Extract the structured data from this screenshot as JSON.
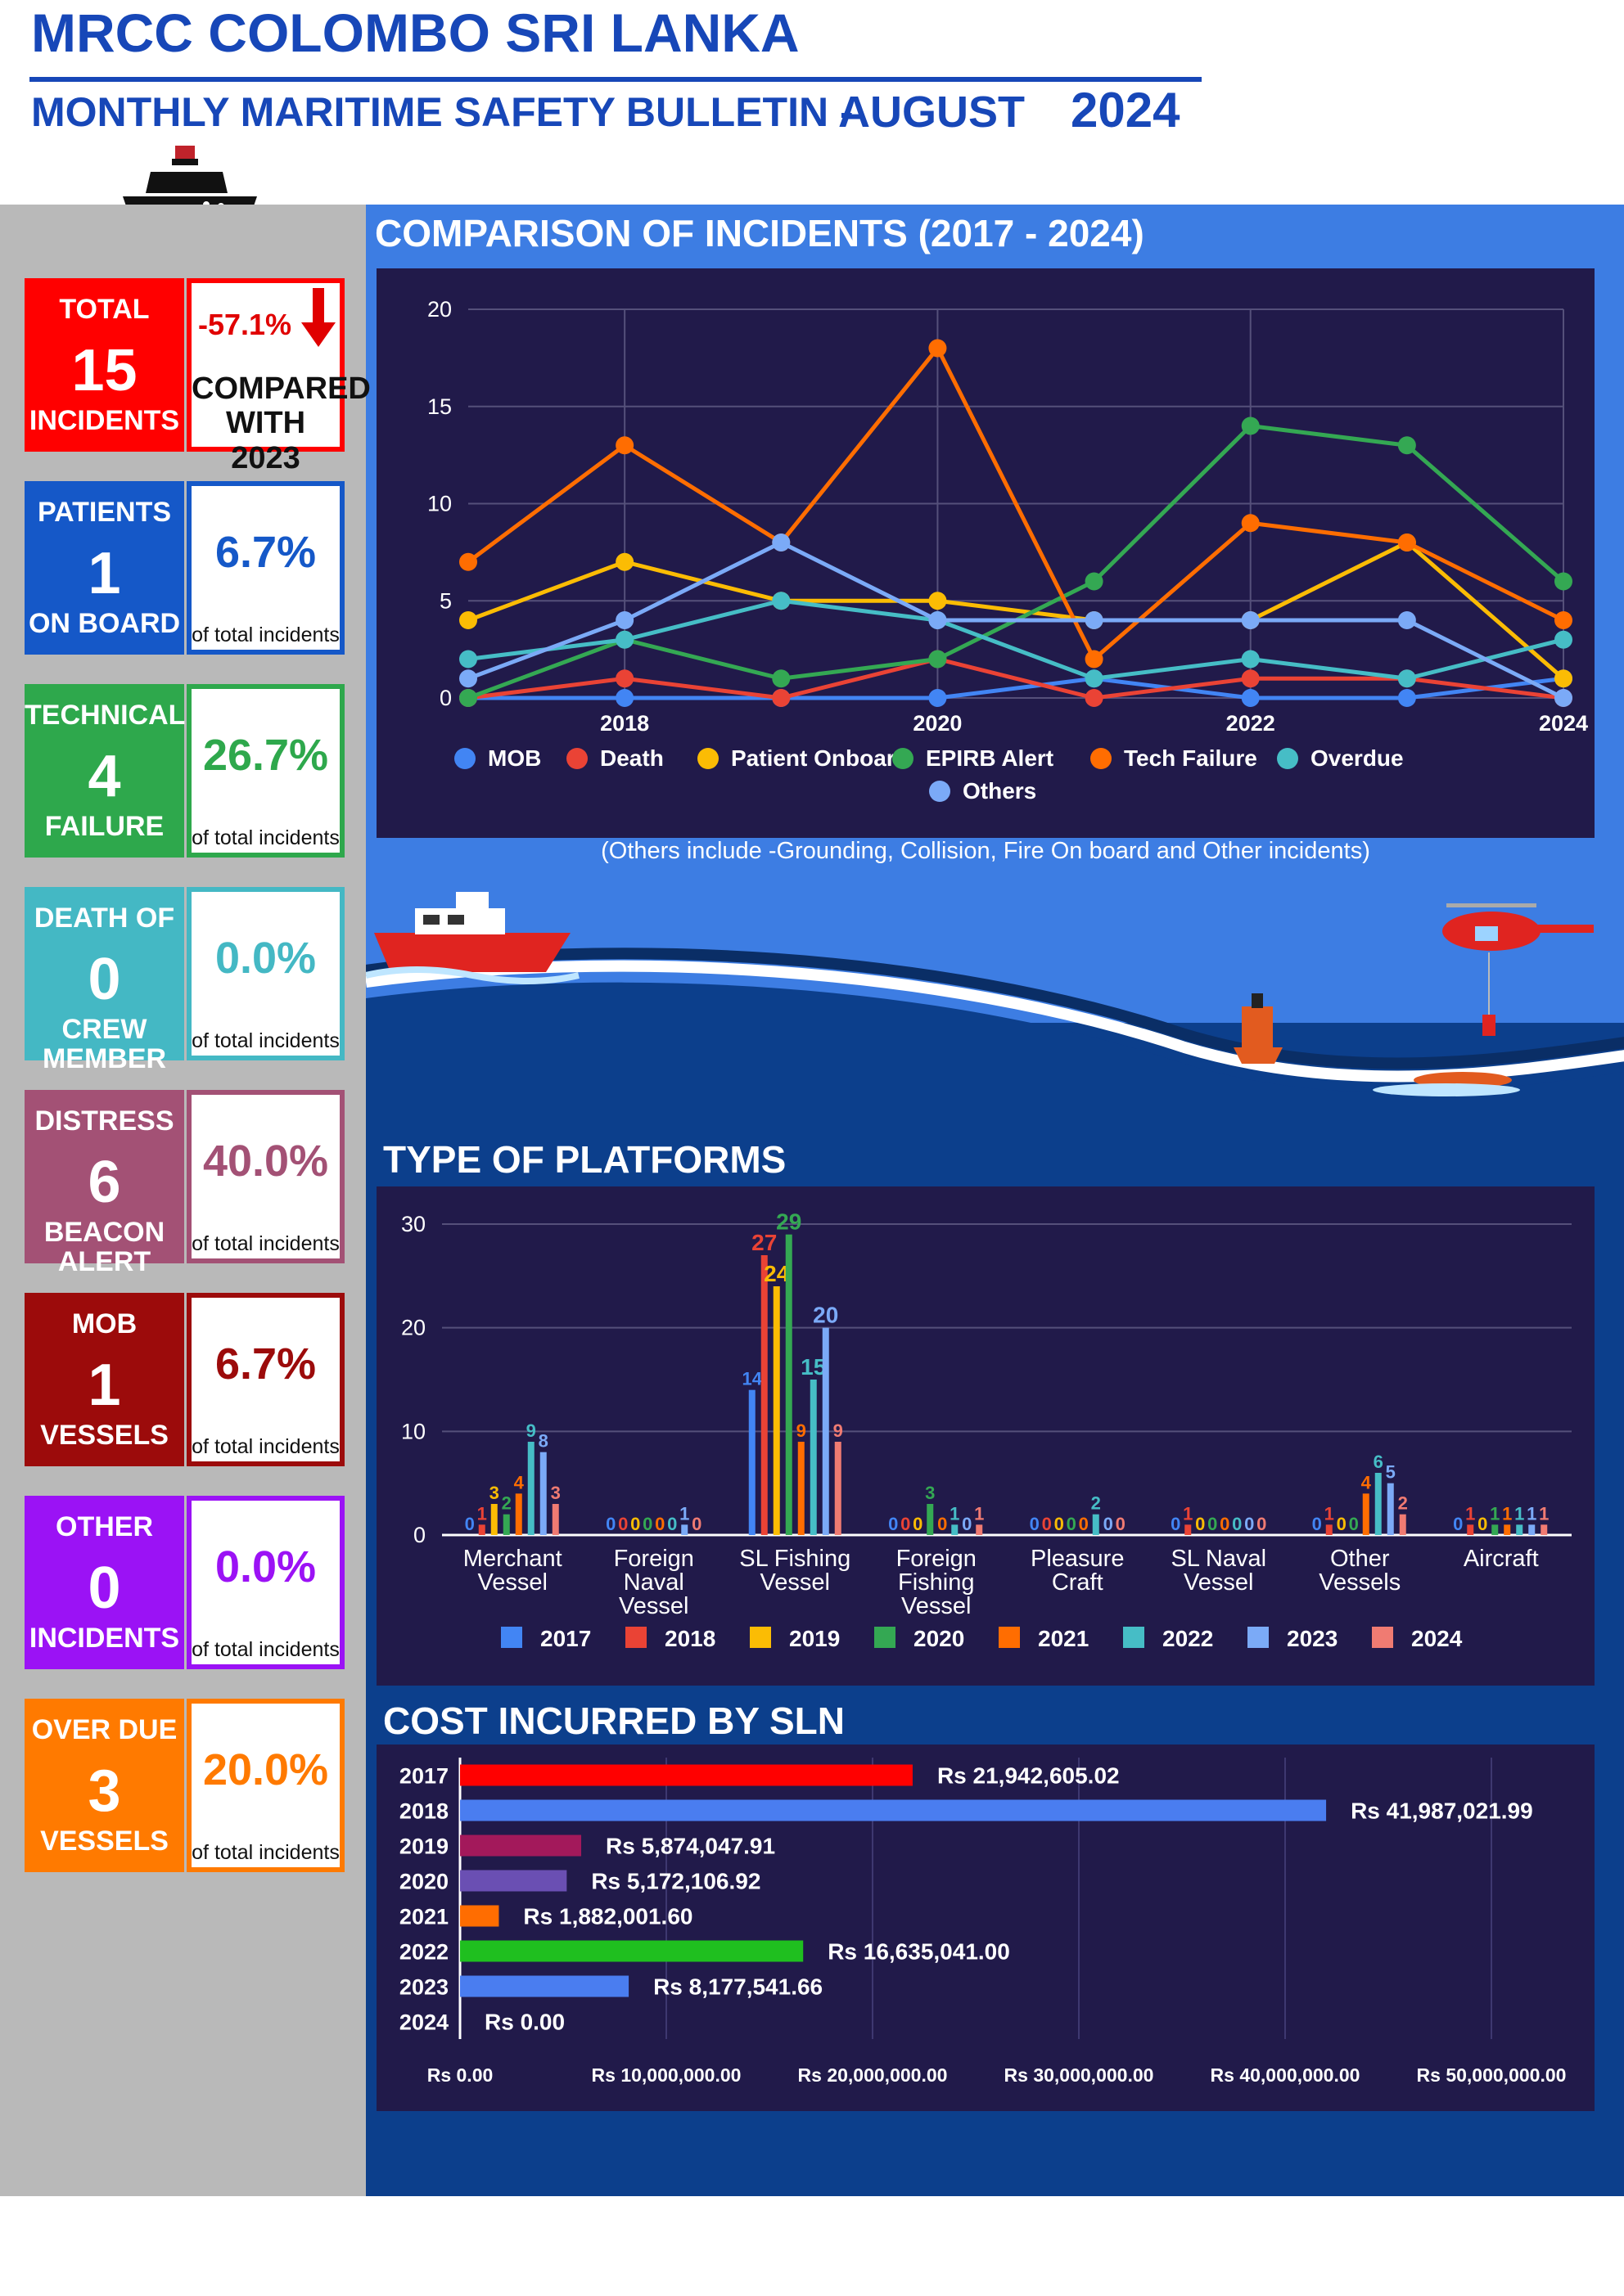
{
  "header": {
    "title": "MRCC COLOMBO SRI LANKA",
    "subtitle": "MONTHLY MARITIME SAFETY BULLETIN -",
    "month": "AUGUST",
    "year": "2024"
  },
  "colors": {
    "header_blue": "#1747b8",
    "sidebar_gray": "#b9b9b9",
    "dark_blue": "#0c3f8c",
    "light_blue": "#3d7de3",
    "chart_bg": "#211a4a"
  },
  "cards": [
    {
      "label_top": "TOTAL",
      "value": "15",
      "label_bottom": "INCIDENTS",
      "color": "#ff0000",
      "pct": "-57.1%",
      "pct_sub1": "COMPARED",
      "pct_sub2": "WITH 2023",
      "change": -57.1
    },
    {
      "label_top": "PATIENTS",
      "value": "1",
      "label_bottom": "ON BOARD",
      "color": "#1558c8",
      "pct": "6.7%",
      "pct_sub": "of total incidents"
    },
    {
      "label_top": "TECHNICAL",
      "value": "4",
      "label_bottom": "FAILURE",
      "color": "#2ea84c",
      "pct": "26.7%",
      "pct_sub": "of total incidents"
    },
    {
      "label_top": "DEATH OF",
      "value": "0",
      "label_bottom": "CREW MEMBER",
      "color": "#44b8c4",
      "pct": "0.0%",
      "pct_sub": "of total incidents"
    },
    {
      "label_top": "DISTRESS",
      "value": "6",
      "label_bottom": "BEACON ALERT",
      "color": "#a35175",
      "pct": "40.0%",
      "pct_sub": "of total incidents"
    },
    {
      "label_top": "MOB",
      "value": "1",
      "label_bottom": "VESSELS",
      "color": "#9c0b0b",
      "pct": "6.7%",
      "pct_sub": "of total incidents"
    },
    {
      "label_top": "OTHER",
      "value": "0",
      "label_bottom": "INCIDENTS",
      "color": "#9b12f5",
      "pct": "0.0%",
      "pct_sub": "of total incidents"
    },
    {
      "label_top": "OVER DUE",
      "value": "3",
      "label_bottom": "VESSELS",
      "color": "#ff7a00",
      "pct": "20.0%",
      "pct_sub": "of total incidents"
    }
  ],
  "sections": {
    "comparison_title": "COMPARISON OF INCIDENTS (2017 - 2024)",
    "comparison_note": "(Others include -Grounding, Collision, Fire On board and Other incidents)",
    "platforms_title": "TYPE OF PLATFORMS",
    "cost_title": "COST INCURRED BY SLN"
  },
  "chart_data": [
    {
      "type": "line",
      "x": [
        2017,
        2018,
        2019,
        2020,
        2021,
        2022,
        2023,
        2024
      ],
      "x_ticks": [
        "2018",
        "2020",
        "2022",
        "2024"
      ],
      "ylim": [
        0,
        20
      ],
      "y_ticks": [
        "0",
        "5",
        "10",
        "15",
        "20"
      ],
      "grid": true,
      "legend": "bottom",
      "series": [
        {
          "name": "MOB",
          "color": "#4285f4",
          "values": [
            0,
            0,
            0,
            0,
            1,
            0,
            0,
            1
          ]
        },
        {
          "name": "Death",
          "color": "#ea4335",
          "values": [
            0,
            1,
            0,
            2,
            0,
            1,
            1,
            0
          ]
        },
        {
          "name": "Patient Onboard",
          "color": "#fbbc04",
          "values": [
            4,
            7,
            5,
            5,
            4,
            4,
            8,
            1
          ]
        },
        {
          "name": "EPIRB Alert",
          "color": "#34a853",
          "values": [
            0,
            3,
            1,
            2,
            6,
            14,
            13,
            6
          ]
        },
        {
          "name": "Tech Failure",
          "color": "#ff6d01",
          "values": [
            7,
            13,
            8,
            18,
            2,
            9,
            8,
            4
          ]
        },
        {
          "name": "Overdue",
          "color": "#46bdc6",
          "values": [
            2,
            3,
            5,
            4,
            1,
            2,
            1,
            3
          ]
        },
        {
          "name": "Others",
          "color": "#7baaf7",
          "values": [
            1,
            4,
            8,
            4,
            4,
            4,
            4,
            0
          ]
        }
      ]
    },
    {
      "type": "bar",
      "categories": [
        [
          "Merchant",
          "Vessel"
        ],
        [
          "Foreign",
          "Naval",
          "Vessel"
        ],
        [
          "SL Fishing",
          "Vessel"
        ],
        [
          "Foreign",
          "Fishing",
          "Vessel"
        ],
        [
          "Pleasure",
          "Craft"
        ],
        [
          "SL Naval",
          "Vessel"
        ],
        [
          "Other",
          "Vessels"
        ],
        [
          "Aircraft"
        ]
      ],
      "ylim": [
        0,
        30
      ],
      "y_ticks": [
        "0",
        "10",
        "20",
        "30"
      ],
      "grid": true,
      "legend": "bottom",
      "series": [
        {
          "name": "2017",
          "color": "#4285f4",
          "values": [
            0,
            0,
            14,
            0,
            0,
            0,
            0,
            0
          ]
        },
        {
          "name": "2018",
          "color": "#ea4335",
          "values": [
            1,
            0,
            27,
            0,
            0,
            1,
            1,
            1
          ]
        },
        {
          "name": "2019",
          "color": "#fbbc04",
          "values": [
            3,
            0,
            24,
            0,
            0,
            0,
            0,
            0
          ]
        },
        {
          "name": "2020",
          "color": "#34a853",
          "values": [
            2,
            0,
            29,
            3,
            0,
            0,
            0,
            1
          ]
        },
        {
          "name": "2021",
          "color": "#ff6d01",
          "values": [
            4,
            0,
            9,
            0,
            0,
            0,
            4,
            1
          ]
        },
        {
          "name": "2022",
          "color": "#46bdc6",
          "values": [
            9,
            0,
            15,
            1,
            2,
            0,
            6,
            1
          ]
        },
        {
          "name": "2023",
          "color": "#7baaf7",
          "values": [
            8,
            1,
            20,
            0,
            0,
            0,
            5,
            1
          ]
        },
        {
          "name": "2024",
          "color": "#f07b72",
          "values": [
            3,
            0,
            9,
            1,
            0,
            0,
            2,
            1
          ]
        }
      ]
    },
    {
      "type": "bar",
      "orientation": "horizontal",
      "categories": [
        "2017",
        "2018",
        "2019",
        "2020",
        "2021",
        "2022",
        "2023",
        "2024"
      ],
      "values": [
        21942605.02,
        41987021.99,
        5874047.91,
        5172106.92,
        1882001.6,
        16635041.0,
        8177541.66,
        0
      ],
      "value_labels": [
        "Rs 21,942,605.02",
        "Rs 41,987,021.99",
        "Rs 5,874,047.91",
        "Rs 5,172,106.92",
        "Rs 1,882,001.60",
        "Rs 16,635,041.00",
        "Rs 8,177,541.66",
        "Rs 0.00"
      ],
      "colors": [
        "#ff0000",
        "#4a7df0",
        "#a3195b",
        "#6a4fb3",
        "#ff6d01",
        "#1fbf1f",
        "#4a7df0",
        "#4a7df0"
      ],
      "xlim": [
        0,
        50000000
      ],
      "x_ticks": [
        "Rs 0.00",
        "Rs 10,000,000.00",
        "Rs 20,000,000.00",
        "Rs 30,000,000.00",
        "Rs 40,000,000.00",
        "Rs 50,000,000.00"
      ],
      "grid": true
    }
  ]
}
